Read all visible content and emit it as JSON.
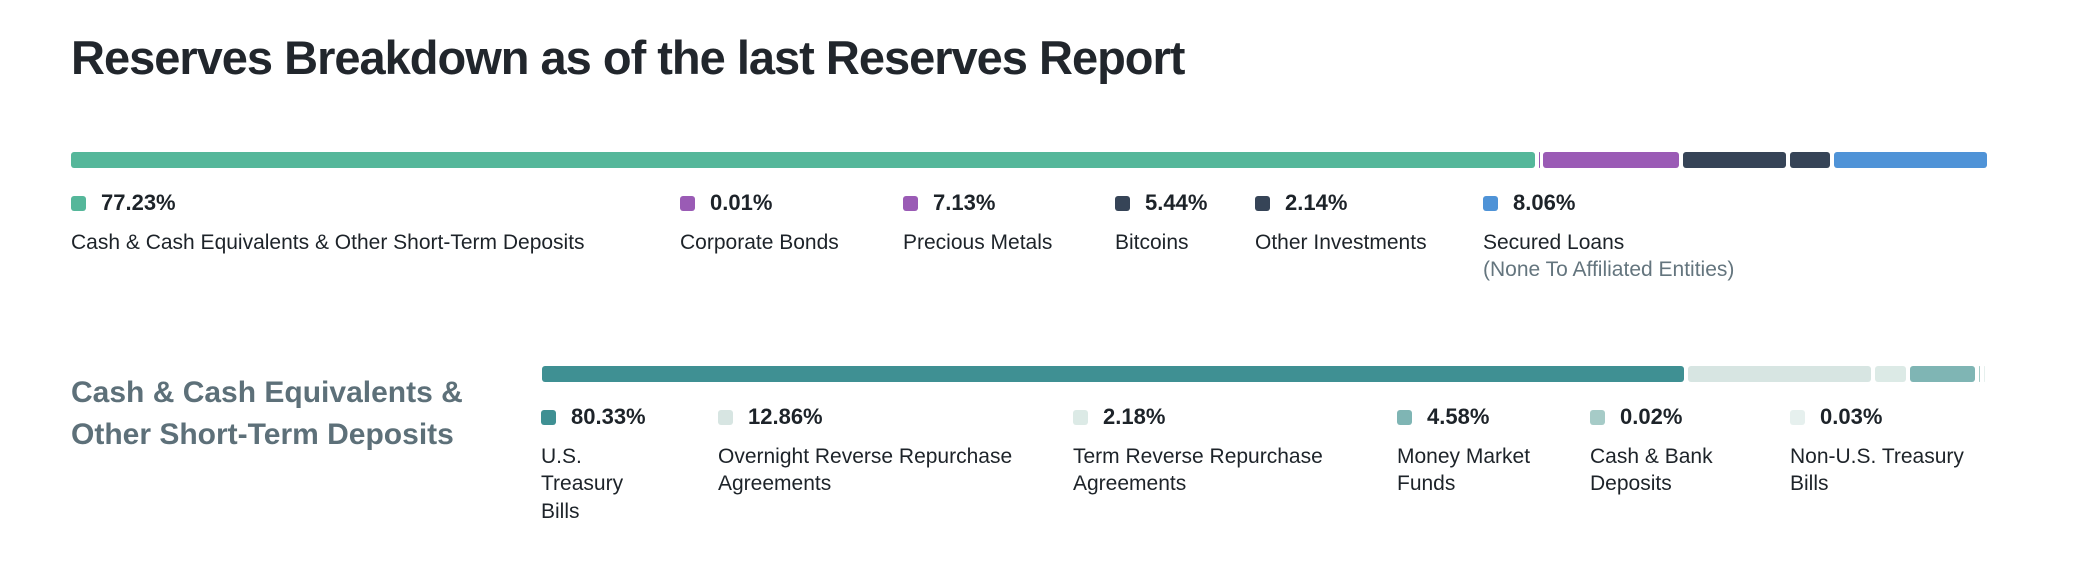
{
  "header": {
    "title": "Reserves Breakdown as of the last Reserves Report"
  },
  "section2": {
    "heading_line1": "Cash & Cash Equivalents &",
    "heading_line2": "Other Short-Term Deposits"
  },
  "colors": {
    "cash_equivalents": "#55b79a",
    "corporate_bonds": "#9a5bb5",
    "precious_metals": "#9a5bb5",
    "bitcoins": "#364457",
    "other_investments": "#364457",
    "secured_loans": "#4f93d7",
    "us_treasury_bills": "#3f9093",
    "overnight_reverse_repo": "#d7e5e2",
    "term_reverse_repo": "#dceae6",
    "money_market_funds": "#7fb5b4",
    "cash_bank_deposits": "#a6cbc7",
    "non_us_treasury_bills": "#e6f0ee"
  },
  "chart_data": [
    {
      "type": "bar",
      "stacked": true,
      "orientation": "horizontal",
      "title": "Reserves Breakdown as of the last Reserves Report",
      "legend_position": "below",
      "series": [
        {
          "name": "Cash & Cash Equivalents & Other Short-Term Deposits",
          "value": 77.23,
          "label": "77.23%",
          "color": "#55b79a"
        },
        {
          "name": "Corporate Bonds",
          "value": 0.01,
          "label": "0.01%",
          "color": "#9a5bb5"
        },
        {
          "name": "Precious Metals",
          "value": 7.13,
          "label": "7.13%",
          "color": "#9a5bb5"
        },
        {
          "name": "Bitcoins",
          "value": 5.44,
          "label": "5.44%",
          "color": "#364457"
        },
        {
          "name": "Other Investments",
          "value": 2.14,
          "label": "2.14%",
          "color": "#364457"
        },
        {
          "name": "Secured Loans",
          "sub": "(None To Affiliated Entities)",
          "value": 8.06,
          "label": "8.06%",
          "color": "#4f93d7"
        }
      ]
    },
    {
      "type": "bar",
      "stacked": true,
      "orientation": "horizontal",
      "title": "Cash & Cash Equivalents & Other Short-Term Deposits",
      "legend_position": "below",
      "series": [
        {
          "name": "U.S. Treasury Bills",
          "value": 80.33,
          "label": "80.33%",
          "color": "#3f9093"
        },
        {
          "name": "Overnight Reverse Repurchase Agreements",
          "value": 12.86,
          "label": "12.86%",
          "color": "#d7e5e2"
        },
        {
          "name": "Term Reverse Repurchase Agreements",
          "value": 2.18,
          "label": "2.18%",
          "color": "#dceae6"
        },
        {
          "name": "Money Market Funds",
          "value": 4.58,
          "label": "4.58%",
          "color": "#7fb5b4"
        },
        {
          "name": "Cash & Bank Deposits",
          "value": 0.02,
          "label": "0.02%",
          "color": "#a6cbc7"
        },
        {
          "name": "Non-U.S. Treasury Bills",
          "value": 0.03,
          "label": "0.03%",
          "color": "#e6f0ee"
        }
      ]
    }
  ]
}
